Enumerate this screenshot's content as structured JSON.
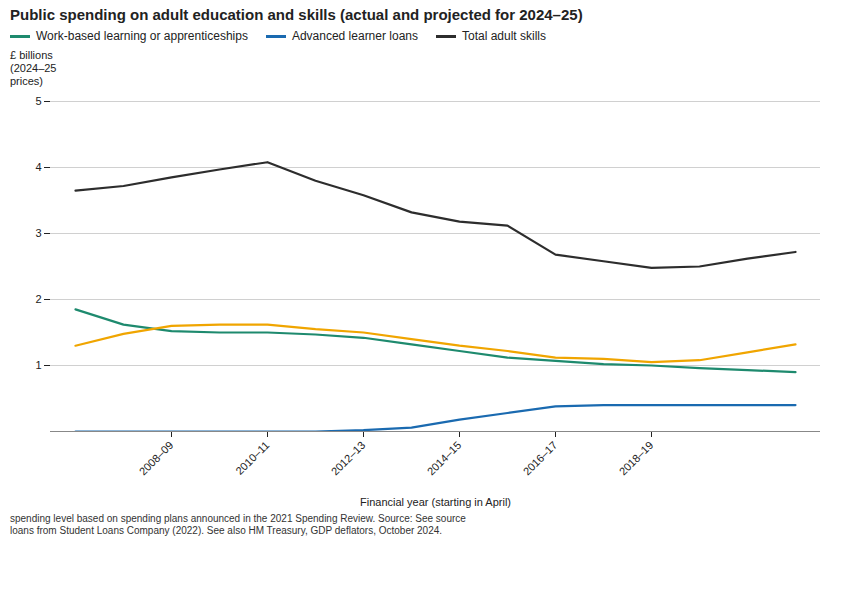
{
  "chart_data": {
    "type": "line",
    "title": "Public spending on adult education and skills (actual and projected for 2024–25)",
    "subtitle": "spending level based on spending plans announced in the 2021 Spending Review. Source: See source\nloans from Student Loans Company (2022). See also HM Treasury, GDP deflators, October 2024.",
    "ylabel": "£ billions\n(2024–25\nprices)",
    "xlabel": "Financial year (starting in April)",
    "categories": [
      null,
      null,
      "2008–09",
      null,
      "2010–11",
      null,
      "2012–13",
      null,
      "2014–15",
      null,
      "2016–17",
      null,
      "2018–19",
      null,
      null,
      null
    ],
    "series": [
      {
        "name": "Work-based learning or apprenticeships",
        "color": "#1e8a6e",
        "values": [
          1.85,
          1.62,
          1.52,
          1.5,
          1.5,
          1.47,
          1.42,
          1.32,
          1.22,
          1.12,
          1.07,
          1.02,
          1.0,
          0.96,
          0.93,
          0.9
        ]
      },
      {
        "name": "Advanced learner loans",
        "color": "#1a6ab0",
        "values": [
          0.0,
          0.0,
          0.0,
          0.0,
          0.0,
          0.0,
          0.02,
          0.06,
          0.18,
          0.28,
          0.38,
          0.4,
          0.4,
          0.4,
          0.4,
          0.4
        ]
      },
      {
        "name": "Total adult skills",
        "color": "#2d2d2d",
        "values": [
          3.65,
          3.72,
          3.85,
          3.97,
          4.08,
          3.8,
          3.58,
          3.32,
          3.18,
          3.12,
          2.68,
          2.58,
          2.48,
          2.5,
          2.62,
          2.72
        ]
      },
      {
        "color": "#f0a500",
        "values": [
          1.3,
          1.48,
          1.6,
          1.62,
          1.62,
          1.55,
          1.5,
          1.4,
          1.3,
          1.22,
          1.12,
          1.1,
          1.05,
          1.08,
          1.2,
          1.32
        ]
      }
    ],
    "ylim": [
      0,
      5.0
    ],
    "yticks": [
      1,
      2,
      3,
      4,
      5
    ],
    "grid": true
  }
}
